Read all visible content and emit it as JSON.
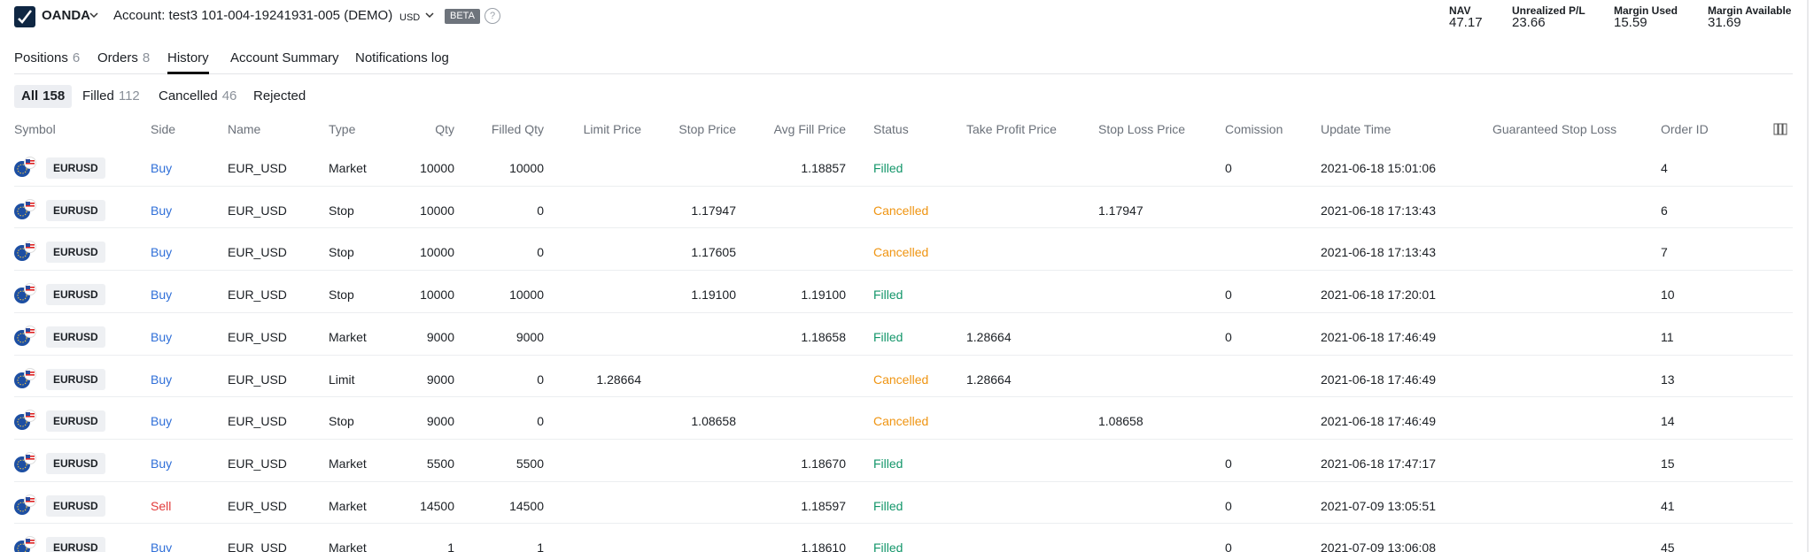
{
  "header": {
    "brand": "OANDA",
    "account": "Account: test3 101-004-19241931-005 (DEMO)",
    "currency": "USD",
    "badge": "BETA",
    "help": "?"
  },
  "summary": [
    {
      "label": "NAV",
      "value": "47.17"
    },
    {
      "label": "Unrealized P/L",
      "value": "23.66"
    },
    {
      "label": "Margin Used",
      "value": "15.59"
    },
    {
      "label": "Margin Available",
      "value": "31.69"
    }
  ],
  "tabs": [
    {
      "label": "Positions",
      "count": "6"
    },
    {
      "label": "Orders",
      "count": "8"
    },
    {
      "label": "History",
      "active": true
    },
    {
      "label": "Account Summary"
    },
    {
      "label": "Notifications log"
    }
  ],
  "filters": [
    {
      "label": "All",
      "count": "158",
      "active": true
    },
    {
      "label": "Filled",
      "count": "112"
    },
    {
      "label": "Cancelled",
      "count": "46"
    },
    {
      "label": "Rejected"
    }
  ],
  "table": {
    "columns": [
      "Symbol",
      "Side",
      "Name",
      "Type",
      "Qty",
      "Filled Qty",
      "Limit Price",
      "Stop Price",
      "Avg Fill Price",
      "Status",
      "Take Profit Price",
      "Stop Loss Price",
      "Comission",
      "Update Time",
      "Guaranteed Stop Loss",
      "Order ID"
    ],
    "value_colors": {
      "Buy": "#2f6fd8",
      "Sell": "#e23b3b",
      "Filled": "#13966a",
      "Cancelled": "#ef9411"
    },
    "rows": [
      [
        "EURUSD",
        "Buy",
        "EUR_USD",
        "Market",
        "10000",
        "10000",
        null,
        null,
        "1.18857",
        "Filled",
        null,
        null,
        "0",
        "2021-06-18 15:01:06",
        null,
        "4"
      ],
      [
        "EURUSD",
        "Buy",
        "EUR_USD",
        "Stop",
        "10000",
        "0",
        null,
        "1.17947",
        null,
        "Cancelled",
        null,
        "1.17947",
        null,
        "2021-06-18 17:13:43",
        null,
        "6"
      ],
      [
        "EURUSD",
        "Buy",
        "EUR_USD",
        "Stop",
        "10000",
        "0",
        null,
        "1.17605",
        null,
        "Cancelled",
        null,
        null,
        null,
        "2021-06-18 17:13:43",
        null,
        "7"
      ],
      [
        "EURUSD",
        "Buy",
        "EUR_USD",
        "Stop",
        "10000",
        "10000",
        null,
        "1.19100",
        "1.19100",
        "Filled",
        null,
        null,
        "0",
        "2021-06-18 17:20:01",
        null,
        "10"
      ],
      [
        "EURUSD",
        "Buy",
        "EUR_USD",
        "Market",
        "9000",
        "9000",
        null,
        null,
        "1.18658",
        "Filled",
        "1.28664",
        null,
        "0",
        "2021-06-18 17:46:49",
        null,
        "11"
      ],
      [
        "EURUSD",
        "Buy",
        "EUR_USD",
        "Limit",
        "9000",
        "0",
        "1.28664",
        null,
        null,
        "Cancelled",
        "1.28664",
        null,
        null,
        "2021-06-18 17:46:49",
        null,
        "13"
      ],
      [
        "EURUSD",
        "Buy",
        "EUR_USD",
        "Stop",
        "9000",
        "0",
        null,
        "1.08658",
        null,
        "Cancelled",
        null,
        "1.08658",
        null,
        "2021-06-18 17:46:49",
        null,
        "14"
      ],
      [
        "EURUSD",
        "Buy",
        "EUR_USD",
        "Market",
        "5500",
        "5500",
        null,
        null,
        "1.18670",
        "Filled",
        null,
        null,
        "0",
        "2021-06-18 17:47:17",
        null,
        "15"
      ],
      [
        "EURUSD",
        "Sell",
        "EUR_USD",
        "Market",
        "14500",
        "14500",
        null,
        null,
        "1.18597",
        "Filled",
        null,
        null,
        "0",
        "2021-07-09 13:05:51",
        null,
        "41"
      ],
      [
        "EURUSD",
        "Buy",
        "EUR_USD",
        "Market",
        "1",
        "1",
        null,
        null,
        "1.18610",
        "Filled",
        null,
        null,
        "0",
        "2021-07-09 13:06:08",
        null,
        "45"
      ]
    ]
  }
}
